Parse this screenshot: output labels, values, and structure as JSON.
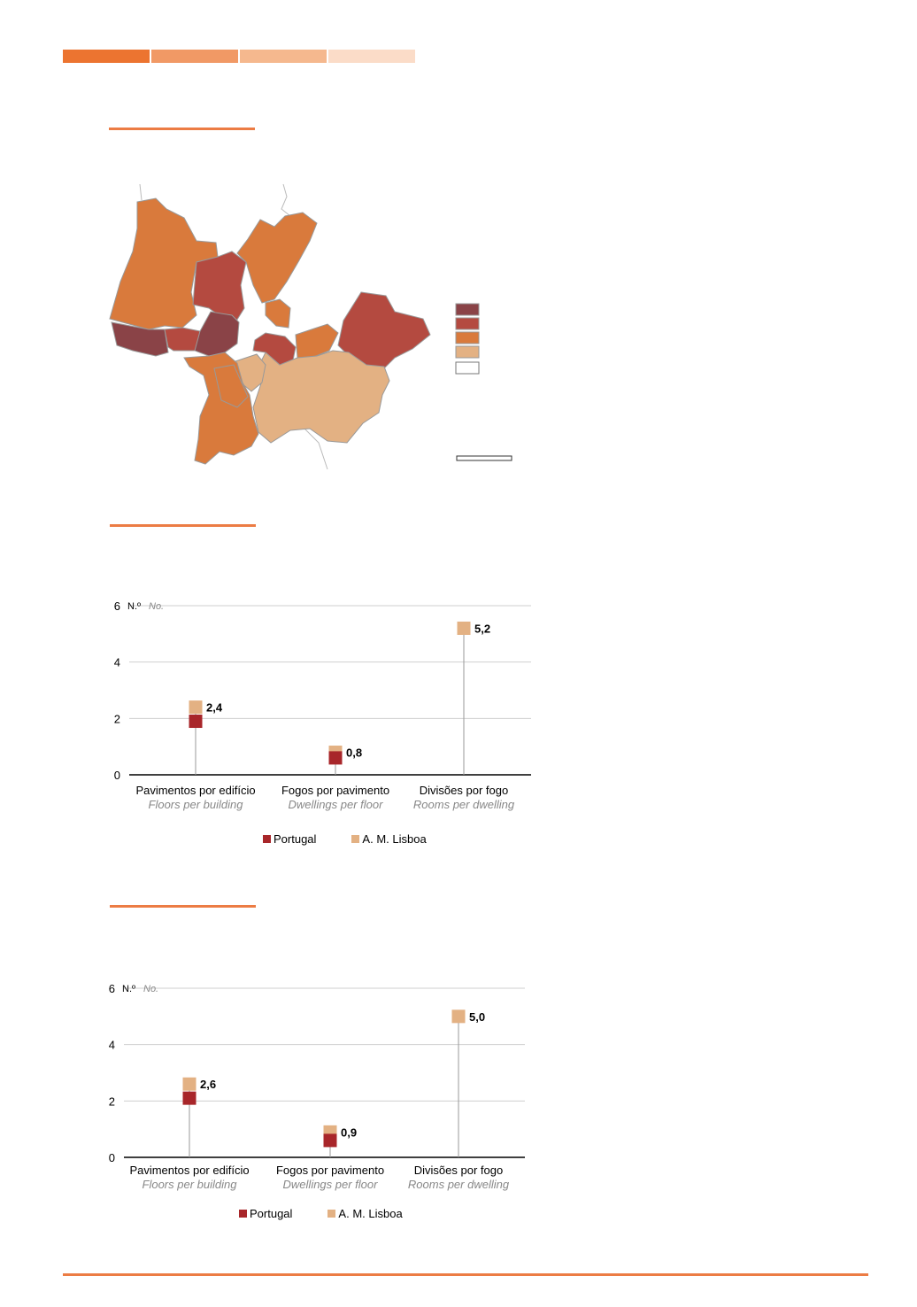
{
  "colors": {
    "accent": "#ec7c44",
    "topbar": [
      "#ec7430",
      "#f19965",
      "#f5b88e",
      "#fbdcc8"
    ],
    "portugal": "#a8262a",
    "lisboa": "#e3b183",
    "map_classes": [
      "#8a4347",
      "#b44a40",
      "#d97a3c",
      "#e3b183",
      "#ffffff"
    ]
  },
  "chart_data": [
    {
      "type": "dot-stem",
      "y_unit": "N.º",
      "y_unit_en": "No.",
      "ylim": [
        0,
        6
      ],
      "yticks": [
        0,
        2,
        4,
        6
      ],
      "grid": true,
      "legend_placement": "bottom",
      "categories": [
        {
          "label": "Pavimentos por edifício",
          "label_en": "Floors per building"
        },
        {
          "label": "Fogos por pavimento",
          "label_en": "Dwellings per floor"
        },
        {
          "label": "Divisões por fogo",
          "label_en": "Rooms per dwelling"
        }
      ],
      "series": [
        {
          "name": "Portugal",
          "values": [
            1.9,
            0.6,
            5.2
          ]
        },
        {
          "name": "A. M. Lisboa",
          "values": [
            2.4,
            0.8,
            5.2
          ]
        }
      ],
      "data_labels": [
        "2,4",
        "0,8",
        "5,2"
      ]
    },
    {
      "type": "dot-stem",
      "y_unit": "N.º",
      "y_unit_en": "No.",
      "ylim": [
        0,
        6
      ],
      "yticks": [
        0,
        2,
        4,
        6
      ],
      "grid": true,
      "legend_placement": "bottom",
      "categories": [
        {
          "label": "Pavimentos por edifício",
          "label_en": "Floors per building"
        },
        {
          "label": "Fogos por pavimento",
          "label_en": "Dwellings per floor"
        },
        {
          "label": "Divisões por fogo",
          "label_en": "Rooms per dwelling"
        }
      ],
      "series": [
        {
          "name": "Portugal",
          "values": [
            2.1,
            0.6,
            5.0
          ]
        },
        {
          "name": "A. M. Lisboa",
          "values": [
            2.6,
            0.9,
            5.0
          ]
        }
      ],
      "data_labels": [
        "2,6",
        "0,9",
        "5,0"
      ]
    }
  ]
}
